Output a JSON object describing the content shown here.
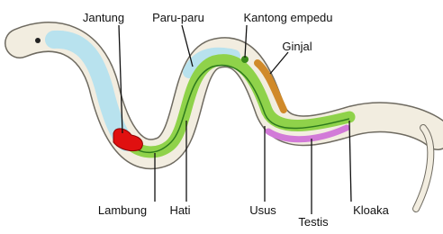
{
  "labels": [
    "Jantung",
    "Paru-paru",
    "Kantong empedu",
    "Ginjal",
    "Lambung",
    "Hati",
    "Usus",
    "Testis",
    "Kloaka"
  ]
}
